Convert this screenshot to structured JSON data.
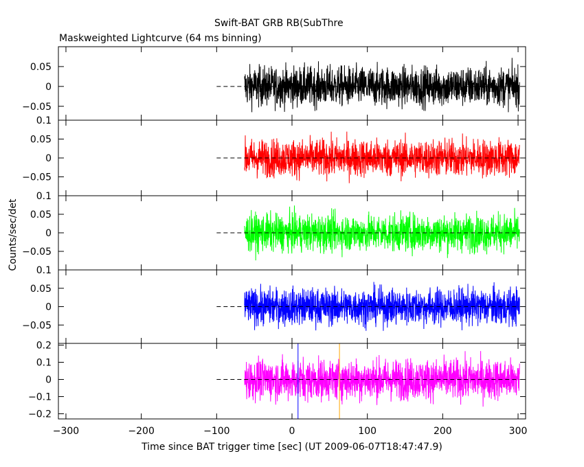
{
  "chart_data": {
    "type": "line",
    "title": "Swift-BAT GRB RB(SubThre",
    "subtitle": "Maskweighted Lightcurve (64 ms binning)",
    "xlabel": "Time since BAT trigger time [sec] (UT 2009-06-07T18:47:47.9)",
    "ylabel": "Counts/sec/det",
    "xlim": [
      -310,
      310
    ],
    "x_ticks": [
      -300,
      -200,
      -100,
      0,
      100,
      200,
      300
    ],
    "x_tick_labels": [
      "−300",
      "−200",
      "−100",
      "0",
      "100",
      "200",
      "300"
    ],
    "data_x_range": [
      -63,
      302
    ],
    "dashed_baseline_x_range": [
      -100,
      302
    ],
    "grid": false,
    "panels": [
      {
        "color": "#000000",
        "ylim": [
          -0.085,
          0.1
        ],
        "y_ticks": [
          -0.05,
          0,
          0.05
        ],
        "y_tick_labels": [
          "−0.05",
          "0",
          "0.05"
        ],
        "amplitude": 0.08,
        "band_label": ""
      },
      {
        "color": "#ff0000",
        "ylim": [
          -0.1,
          0.1
        ],
        "y_ticks": [
          -0.05,
          0,
          0.05,
          0.1
        ],
        "y_tick_labels": [
          "−0.05",
          "0",
          "0.05",
          "0.1"
        ],
        "amplitude": 0.08,
        "band_label": ""
      },
      {
        "color": "#00ff00",
        "ylim": [
          -0.1,
          0.1
        ],
        "y_ticks": [
          -0.05,
          0,
          0.05,
          0.1
        ],
        "y_tick_labels": [
          "−0.05",
          "0",
          "0.05",
          "0.1"
        ],
        "amplitude": 0.08,
        "band_label": ""
      },
      {
        "color": "#0000ff",
        "ylim": [
          -0.1,
          0.1
        ],
        "y_ticks": [
          -0.05,
          0,
          0.05,
          0.1
        ],
        "y_tick_labels": [
          "−0.05",
          "0",
          "0.05",
          "0.1"
        ],
        "amplitude": 0.08,
        "band_label": ""
      },
      {
        "color": "#ff00ff",
        "ylim": [
          -0.23,
          0.21
        ],
        "y_ticks": [
          -0.2,
          -0.1,
          0,
          0.1,
          0.2
        ],
        "y_tick_labels": [
          "−0.2",
          "−0.1",
          "0",
          "0.1",
          "0.2"
        ],
        "amplitude": 0.19,
        "band_label": ""
      }
    ],
    "vertical_markers": [
      {
        "x": 8,
        "color": "#0000ff"
      },
      {
        "x": 63,
        "color": "#ffa500"
      }
    ]
  }
}
